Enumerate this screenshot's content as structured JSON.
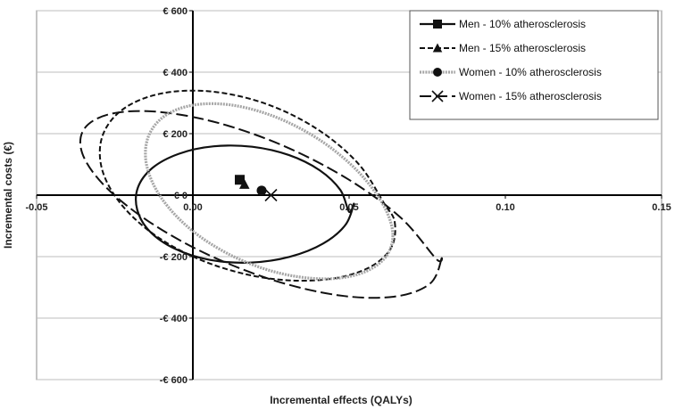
{
  "chart_data": {
    "type": "scatter",
    "xlabel": "Incremental effects (QALYs)",
    "ylabel": "Incremental costs (€)",
    "xlim": [
      -0.05,
      0.15
    ],
    "ylim": [
      -600,
      600
    ],
    "x_ticks": [
      {
        "value": -0.05,
        "label": "-0.05"
      },
      {
        "value": 0.0,
        "label": "0.00"
      },
      {
        "value": 0.05,
        "label": "0.05"
      },
      {
        "value": 0.1,
        "label": "0.10"
      },
      {
        "value": 0.15,
        "label": "0.15"
      }
    ],
    "y_ticks": [
      {
        "value": 600,
        "label": "€ 600"
      },
      {
        "value": 400,
        "label": "€ 400"
      },
      {
        "value": 200,
        "label": "€ 200"
      },
      {
        "value": 0,
        "label": "€ 0"
      },
      {
        "value": -200,
        "label": "-€ 200"
      },
      {
        "value": -400,
        "label": "-€ 400"
      },
      {
        "value": -600,
        "label": "-€ 600"
      }
    ],
    "grid": "horizontal",
    "legend_position": "top-right",
    "series": [
      {
        "name": "Men - 10% atherosclerosis",
        "marker": "square",
        "line_style": "solid",
        "color": "#111111",
        "point": {
          "x": 0.015,
          "y": 50
        },
        "ellipse": [
          [
            0.0515,
            -28.5
          ],
          [
            0.0488,
            -97.0
          ],
          [
            0.0417,
            -157.4
          ],
          [
            0.031,
            -200.6
          ],
          [
            0.0184,
            -219.5
          ],
          [
            0.0055,
            -210.7
          ],
          [
            -0.0056,
            -175.1
          ],
          [
            -0.0138,
            -117.8
          ],
          [
            -0.0178,
            -47.4
          ],
          [
            -0.0176,
            24.4
          ],
          [
            -0.013,
            88.0
          ],
          [
            -0.0045,
            134.5
          ],
          [
            0.0067,
            158.9
          ],
          [
            0.019,
            157.3
          ],
          [
            0.0308,
            130.2
          ],
          [
            0.0406,
            80.8
          ],
          [
            0.0472,
            16.7
          ],
          [
            0.05,
            -54.1
          ],
          [
            0.0515,
            -28.5
          ]
        ]
      },
      {
        "name": "Men - 15% atherosclerosis",
        "marker": "triangle",
        "line_style": "dashed",
        "color": "#111111",
        "point": {
          "x": 0.0165,
          "y": 35
        },
        "ellipse": [
          [
            0.0646,
            -87.7
          ],
          [
            0.0633,
            -173.8
          ],
          [
            0.0555,
            -240.1
          ],
          [
            0.042,
            -275.1
          ],
          [
            0.0248,
            -271.5
          ],
          [
            0.0069,
            -227.9
          ],
          [
            -0.0095,
            -148.2
          ],
          [
            -0.0219,
            -42.2
          ],
          [
            -0.0288,
            75.1
          ],
          [
            -0.0291,
            187.4
          ],
          [
            -0.0227,
            277.0
          ],
          [
            -0.0105,
            329.9
          ],
          [
            0.0057,
            337.3
          ],
          [
            0.0233,
            297.4
          ],
          [
            0.0398,
            214.8
          ],
          [
            0.053,
            101.8
          ],
          [
            0.0611,
            -25.6
          ],
          [
            0.0646,
            -87.7
          ]
        ]
      },
      {
        "name": "Women - 10% atherosclerosis",
        "marker": "circle",
        "line_style": "dotted-gray",
        "color": "#9a9a9a",
        "point": {
          "x": 0.022,
          "y": 15
        },
        "ellipse": [
          [
            0.064,
            -130.7
          ],
          [
            0.0612,
            -207.2
          ],
          [
            0.0531,
            -256.7
          ],
          [
            0.0411,
            -272.3
          ],
          [
            0.0268,
            -251.2
          ],
          [
            0.0122,
            -195.6
          ],
          [
            -0.0006,
            -112.2
          ],
          [
            -0.0099,
            -11.7
          ],
          [
            -0.0147,
            92.6
          ],
          [
            -0.0144,
            186.0
          ],
          [
            -0.0092,
            256.2
          ],
          [
            0.0004,
            293.4
          ],
          [
            0.013,
            292.1
          ],
          [
            0.0271,
            251.6
          ],
          [
            0.041,
            176.7
          ],
          [
            0.0529,
            76.4
          ],
          [
            0.061,
            -33.0
          ],
          [
            0.064,
            -130.7
          ]
        ]
      },
      {
        "name": "Women - 15% atherosclerosis",
        "marker": "x",
        "line_style": "long-dashed",
        "color": "#111111",
        "point": {
          "x": 0.025,
          "y": 0
        },
        "ellipse": [
          [
            0.0795,
            -207.7
          ],
          [
            0.0758,
            -288.7
          ],
          [
            0.0643,
            -330.3
          ],
          [
            0.0468,
            -326.1
          ],
          [
            0.0259,
            -277.1
          ],
          [
            0.0045,
            -191.8
          ],
          [
            -0.0144,
            -83.8
          ],
          [
            -0.0283,
            30.8
          ],
          [
            -0.0354,
            136.4
          ],
          [
            -0.0346,
            218.0
          ],
          [
            -0.026,
            265.0
          ],
          [
            -0.011,
            270.9
          ],
          [
            0.0084,
            234.1
          ],
          [
            0.0295,
            158.2
          ],
          [
            0.0497,
            51.5
          ],
          [
            0.0666,
            -73.9
          ],
          [
            0.0779,
            -207.9
          ],
          [
            0.0795,
            -207.7
          ]
        ]
      }
    ]
  }
}
